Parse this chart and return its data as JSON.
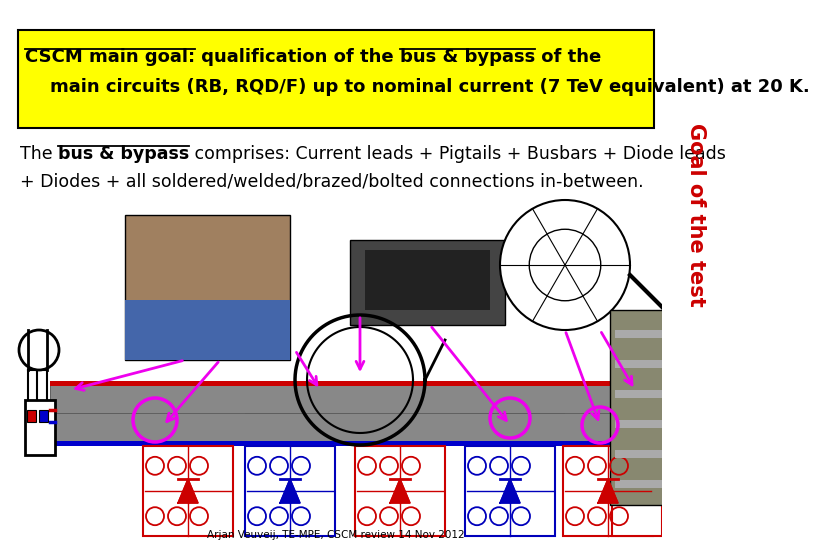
{
  "background_color": "#ffffff",
  "sidebar_color": "#cccccc",
  "sidebar_text": "Goal of the test",
  "sidebar_text_color": "#cc0000",
  "yellow_box_color": "#ffff00",
  "title_bold_ul1": "CSCM main goal:",
  "title_normal": " qualification of the ",
  "title_bold_ul2": "bus & bypass",
  "title_normal2": " of the",
  "title_line2": "    main circuits (RB, RQD/F) up to nominal current (7 TeV equivalent) at 20 K.",
  "body_pre": "The ",
  "body_ul": "bus & bypass",
  "body_post": " comprises: Current leads + Pigtails + Busbars + Diode leads",
  "body_line2": "+ Diodes + all soldered/welded/brazed/bolted connections in-between.",
  "footer": "Arjan Veuveij, TE-MPE, CSCM review 14 Nov 2012",
  "arrow_color": "#ee00ee",
  "title_fontsize": 13,
  "body_fontsize": 12.5,
  "sidebar_fontsize": 15
}
